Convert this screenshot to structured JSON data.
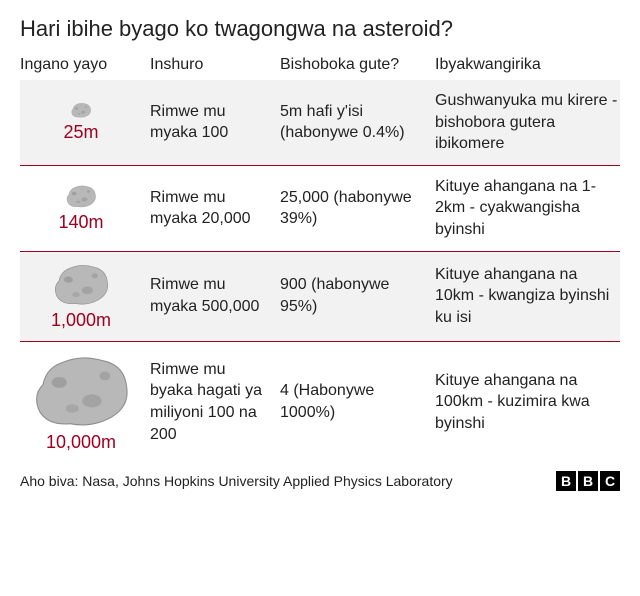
{
  "title": "Hari ibihe byago ko twagongwa na asteroid?",
  "columns": [
    "Ingano yayo",
    "Inshuro",
    "Bishoboka gute?",
    "Ibyakwangirika"
  ],
  "rows": [
    {
      "size": "25m",
      "asteroid_w": 24,
      "asteroid_h": 16,
      "frequency": "Rimwe mu myaka 100",
      "likelihood": "5m hafi y'isi (habonywe 0.4%)",
      "damage": "Gushwanyuka mu kirere - bishobora gutera ibikomere",
      "bg": "even"
    },
    {
      "size": "140m",
      "asteroid_w": 36,
      "asteroid_h": 24,
      "frequency": "Rimwe mu myaka 20,000",
      "likelihood": "25,000 (habonywe 39%)",
      "damage": "Kituye ahangana na 1-2km - cyakwangisha byinshi",
      "bg": "odd"
    },
    {
      "size": "1,000m",
      "asteroid_w": 64,
      "asteroid_h": 44,
      "frequency": "Rimwe mu myaka 500,000",
      "likelihood": "900 (habonywe 95%)",
      "damage": "Kituye ahangana na 10km - kwangiza byinshi ku isi",
      "bg": "even"
    },
    {
      "size": "10,000m",
      "asteroid_w": 110,
      "asteroid_h": 76,
      "frequency": "Rimwe mu byaka hagati ya miliyoni 100 na 200",
      "likelihood": "4 (Habonywe 1000%)",
      "damage": "Kituye ahangana na 100km - kuzimira kwa byinshi",
      "bg": "odd"
    }
  ],
  "source": "Aho biva: Nasa, Johns Hopkins University Applied Physics Laboratory",
  "logo": [
    "B",
    "B",
    "C"
  ],
  "colors": {
    "accent": "#a00020",
    "row_alt": "#f2f2f2",
    "asteroid_fill": "#b8b8b8",
    "asteroid_shade": "#8e8e8e"
  }
}
